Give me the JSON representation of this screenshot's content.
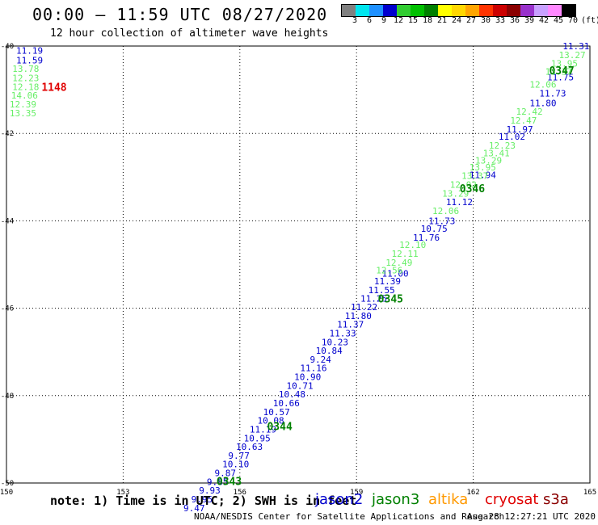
{
  "title": "00:00 – 11:59 UTC 08/27/2020",
  "subtitle": "12 hour collection of altimeter wave heights",
  "note": "note: 1) Time is in UTC; 2) SWH is in feet",
  "credit": "NOAA/NESDIS Center for Satellite Applications and Research",
  "timestamp": "Aug 28 12:27:21 UTC 2020",
  "colorbar": {
    "colors": [
      "#808080",
      "#00e5ee",
      "#1e90ff",
      "#0000cd",
      "#32cd32",
      "#00c000",
      "#008000",
      "#ffff00",
      "#ffd700",
      "#ffa500",
      "#ff3300",
      "#cc0000",
      "#8b0000",
      "#9932cc",
      "#c8a0ff",
      "#ff88ff",
      "#000000"
    ],
    "labels": [
      "3",
      "6",
      "9",
      "12",
      "15",
      "18",
      "21",
      "24",
      "27",
      "30",
      "33",
      "36",
      "39",
      "42",
      "45",
      "70",
      "(ft)"
    ]
  },
  "legend": [
    {
      "name": "jason2",
      "color": "#0000cd"
    },
    {
      "name": "jason3",
      "color": "#008000"
    },
    {
      "name": "altika",
      "color": "#ff9900"
    },
    {
      "name": "cryosat",
      "color": "#e00000"
    },
    {
      "name": "s3a",
      "color": "#8b0000"
    }
  ],
  "chart_data": {
    "type": "scatter",
    "xlim": [
      150,
      165
    ],
    "ylim": [
      -50,
      -40
    ],
    "xticks": [
      150,
      153,
      156,
      159,
      162,
      165
    ],
    "yticks": [
      -40,
      -42,
      -44,
      -46,
      -48,
      -50
    ],
    "xticklabels": [
      "150",
      "153",
      "156",
      "159",
      "162",
      "165"
    ],
    "yticklabels": [
      "-40",
      "-42",
      "-44",
      "-46",
      "-48",
      "-50"
    ],
    "grid": true,
    "series": [
      {
        "name": "jason2",
        "color": "#0000cd",
        "points": [
          {
            "x": 150.25,
            "y": -40.1,
            "label": "11.19"
          },
          {
            "x": 150.25,
            "y": -40.32,
            "label": "11.59"
          },
          {
            "x": 164.3,
            "y": -40.0,
            "label": "11.31"
          },
          {
            "x": 163.9,
            "y": -40.71,
            "label": "11.75"
          },
          {
            "x": 163.7,
            "y": -41.08,
            "label": "11.73"
          },
          {
            "x": 163.45,
            "y": -41.3,
            "label": "11.80"
          },
          {
            "x": 162.85,
            "y": -41.9,
            "label": "11.97"
          },
          {
            "x": 162.65,
            "y": -42.07,
            "label": "11.02"
          },
          {
            "x": 161.9,
            "y": -42.95,
            "label": "11.94"
          },
          {
            "x": 161.3,
            "y": -43.57,
            "label": "11.12"
          },
          {
            "x": 160.85,
            "y": -44.0,
            "label": "11.73"
          },
          {
            "x": 160.65,
            "y": -44.18,
            "label": "10.75"
          },
          {
            "x": 160.45,
            "y": -44.38,
            "label": "11.76"
          },
          {
            "x": 159.65,
            "y": -45.2,
            "label": "11.00"
          },
          {
            "x": 159.45,
            "y": -45.38,
            "label": "11.39"
          },
          {
            "x": 159.3,
            "y": -45.58,
            "label": "11.55"
          },
          {
            "x": 159.1,
            "y": -45.78,
            "label": "11.25"
          },
          {
            "x": 158.85,
            "y": -45.97,
            "label": "11.22"
          },
          {
            "x": 158.7,
            "y": -46.17,
            "label": "11.80"
          },
          {
            "x": 158.5,
            "y": -46.37,
            "label": "11.37"
          },
          {
            "x": 158.3,
            "y": -46.57,
            "label": "11.33"
          },
          {
            "x": 158.1,
            "y": -46.77,
            "label": "10.23"
          },
          {
            "x": 157.95,
            "y": -46.97,
            "label": "10.84"
          },
          {
            "x": 157.8,
            "y": -47.17,
            "label": "9.24"
          },
          {
            "x": 157.55,
            "y": -47.37,
            "label": "11.16"
          },
          {
            "x": 157.4,
            "y": -47.57,
            "label": "10.90"
          },
          {
            "x": 157.2,
            "y": -47.77,
            "label": "10.71"
          },
          {
            "x": 157.0,
            "y": -47.97,
            "label": "10.48"
          },
          {
            "x": 156.85,
            "y": -48.17,
            "label": "10.66"
          },
          {
            "x": 156.6,
            "y": -48.37,
            "label": "10.57"
          },
          {
            "x": 156.45,
            "y": -48.57,
            "label": "10.08"
          },
          {
            "x": 156.25,
            "y": -48.77,
            "label": "11.19"
          },
          {
            "x": 156.1,
            "y": -48.97,
            "label": "10.95"
          },
          {
            "x": 155.9,
            "y": -49.17,
            "label": "10.63"
          },
          {
            "x": 155.7,
            "y": -49.37,
            "label": "9.77"
          },
          {
            "x": 155.55,
            "y": -49.57,
            "label": "10.10"
          },
          {
            "x": 155.35,
            "y": -49.77,
            "label": "9.87"
          },
          {
            "x": 155.15,
            "y": -49.97,
            "label": "9.85"
          },
          {
            "x": 154.95,
            "y": -50.17,
            "label": "9.93"
          },
          {
            "x": 154.75,
            "y": -50.37,
            "label": "9.95"
          },
          {
            "x": 154.55,
            "y": -50.57,
            "label": "9.47"
          }
        ]
      },
      {
        "name": "jason3",
        "color": "#66ee66",
        "points": [
          {
            "x": 150.15,
            "y": -40.52,
            "label": "13.78"
          },
          {
            "x": 150.15,
            "y": -40.73,
            "label": "12.23"
          },
          {
            "x": 150.15,
            "y": -40.93,
            "label": "12.18"
          },
          {
            "x": 150.12,
            "y": -41.13,
            "label": "14.06"
          },
          {
            "x": 150.08,
            "y": -41.33,
            "label": "12.39"
          },
          {
            "x": 150.08,
            "y": -41.53,
            "label": "13.35"
          },
          {
            "x": 164.2,
            "y": -40.2,
            "label": "13.27"
          },
          {
            "x": 164.0,
            "y": -40.4,
            "label": "13.95"
          },
          {
            "x": 163.85,
            "y": -40.58,
            "label": "13.37"
          },
          {
            "x": 163.45,
            "y": -40.88,
            "label": "12.06"
          },
          {
            "x": 163.1,
            "y": -41.5,
            "label": "12.42"
          },
          {
            "x": 162.95,
            "y": -41.7,
            "label": "12.47"
          },
          {
            "x": 162.4,
            "y": -42.27,
            "label": "12.23"
          },
          {
            "x": 162.25,
            "y": -42.45,
            "label": "13.41"
          },
          {
            "x": 162.05,
            "y": -42.62,
            "label": "13.29"
          },
          {
            "x": 161.9,
            "y": -42.77,
            "label": "13.95"
          },
          {
            "x": 161.7,
            "y": -42.97,
            "label": "13.37"
          },
          {
            "x": 161.4,
            "y": -43.17,
            "label": "12.02"
          },
          {
            "x": 161.2,
            "y": -43.37,
            "label": "13.29"
          },
          {
            "x": 160.95,
            "y": -43.77,
            "label": "12.06"
          },
          {
            "x": 160.1,
            "y": -44.55,
            "label": "12.10"
          },
          {
            "x": 159.9,
            "y": -44.75,
            "label": "12.11"
          },
          {
            "x": 159.75,
            "y": -44.95,
            "label": "12.49"
          },
          {
            "x": 159.5,
            "y": -45.13,
            "label": "12.56"
          }
        ]
      },
      {
        "name": "cryosat",
        "color": "#e00000",
        "points": [
          {
            "x": 150.9,
            "y": -40.95,
            "label": "1148"
          }
        ]
      }
    ],
    "annotations": [
      {
        "x": 163.95,
        "y": -40.55,
        "text": "0347",
        "color": "#008000"
      },
      {
        "x": 161.65,
        "y": -43.25,
        "text": "0346",
        "color": "#008000"
      },
      {
        "x": 159.55,
        "y": -45.78,
        "text": "0345",
        "color": "#008000"
      },
      {
        "x": 156.7,
        "y": -48.7,
        "text": "0344",
        "color": "#008000"
      },
      {
        "x": 155.4,
        "y": -49.95,
        "text": "0343",
        "color": "#008000"
      }
    ]
  }
}
